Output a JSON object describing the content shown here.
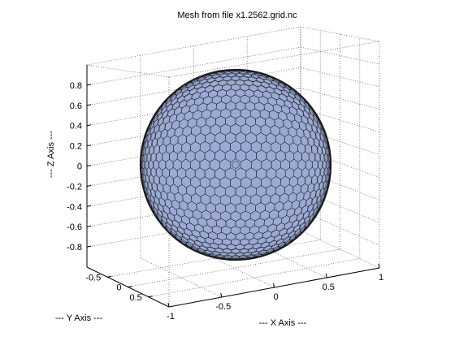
{
  "chart_data": {
    "type": "mesh3d",
    "title": "Mesh from file x1.2562.grid.nc",
    "xlabel": "--- X Axis ---",
    "ylabel": "--- Y Axis ---",
    "zlabel": "--- Z Axis ---",
    "x_ticks": [
      "-1",
      "-0.5",
      "0",
      "0.5",
      "1"
    ],
    "y_ticks": [
      "-0.5",
      "0",
      "0.5"
    ],
    "z_ticks": [
      "0.8",
      "0.6",
      "0.4",
      "0.2",
      "0",
      "-0.2",
      "-0.4",
      "-0.6",
      "-0.8"
    ],
    "xlim": [
      -1,
      1
    ],
    "ylim": [
      -1,
      1
    ],
    "zlim": [
      -1,
      1
    ],
    "grid": true,
    "surface": {
      "shape": "sphere",
      "radius": 1,
      "face_color": "#9aaad4",
      "edge_color": "#1a1a1a"
    }
  }
}
